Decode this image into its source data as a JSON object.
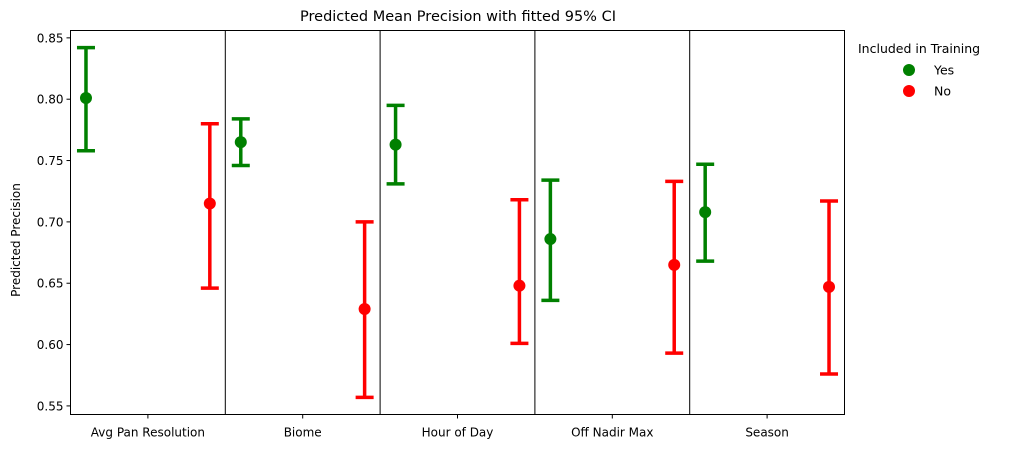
{
  "chart_data": {
    "type": "errorbar",
    "title": "Predicted Mean Precision with fitted 95% CI",
    "xlabel": "",
    "ylabel": "Predicted Precision",
    "ylim": [
      0.543,
      0.856
    ],
    "yticks": [
      "0.55",
      "0.60",
      "0.65",
      "0.70",
      "0.75",
      "0.80",
      "0.85"
    ],
    "categories": [
      "Avg Pan Resolution",
      "Biome",
      "Hour of Day",
      "Off Nadir Max",
      "Season"
    ],
    "grid": false,
    "legend_position": "outside-right",
    "legend_title": "Included in Training",
    "series": [
      {
        "name": "Yes",
        "color": "#008000",
        "mean": [
          0.801,
          0.765,
          0.763,
          0.686,
          0.708
        ],
        "lower": [
          0.758,
          0.746,
          0.731,
          0.636,
          0.668
        ],
        "upper": [
          0.842,
          0.784,
          0.795,
          0.734,
          0.747
        ]
      },
      {
        "name": "No",
        "color": "#ff0000",
        "mean": [
          0.715,
          0.629,
          0.648,
          0.665,
          0.647
        ],
        "lower": [
          0.646,
          0.557,
          0.601,
          0.593,
          0.576
        ],
        "upper": [
          0.78,
          0.7,
          0.718,
          0.733,
          0.717
        ]
      }
    ]
  }
}
